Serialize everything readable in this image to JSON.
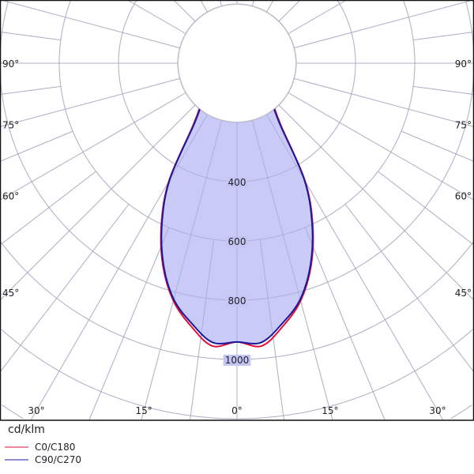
{
  "chart_data": {
    "type": "polar",
    "unit_label": "cd/klm",
    "radial_ticks": [
      200,
      400,
      600,
      800,
      1000,
      1200,
      1400
    ],
    "radial_tick_labels": [
      "400",
      "600",
      "800",
      "1000"
    ],
    "angle_labels_left": [
      "90°",
      "75°",
      "60°",
      "45°"
    ],
    "angle_labels_bottom": [
      "30°",
      "15°",
      "0°",
      "15°",
      "30°"
    ],
    "angle_labels_right": [
      "90°",
      "75°",
      "60°",
      "45°"
    ],
    "angles": [
      0,
      5,
      10,
      15,
      20,
      25,
      30,
      35,
      40,
      45,
      50,
      60,
      70,
      80,
      90
    ],
    "series": [
      {
        "name": "C0/C180",
        "color": "#e0103a",
        "values": [
          941,
          958,
          900,
          830,
          730,
          605,
          460,
          262,
          195,
          158,
          122,
          72,
          42,
          20,
          5
        ]
      },
      {
        "name": "C90/C270",
        "color": "#1a1a9c",
        "values": [
          941,
          946,
          890,
          825,
          725,
          600,
          455,
          255,
          190,
          155,
          120,
          70,
          40,
          20,
          5
        ]
      }
    ],
    "fill_color": "#c4c4f6",
    "grid": true,
    "legend": "bottom-left"
  }
}
